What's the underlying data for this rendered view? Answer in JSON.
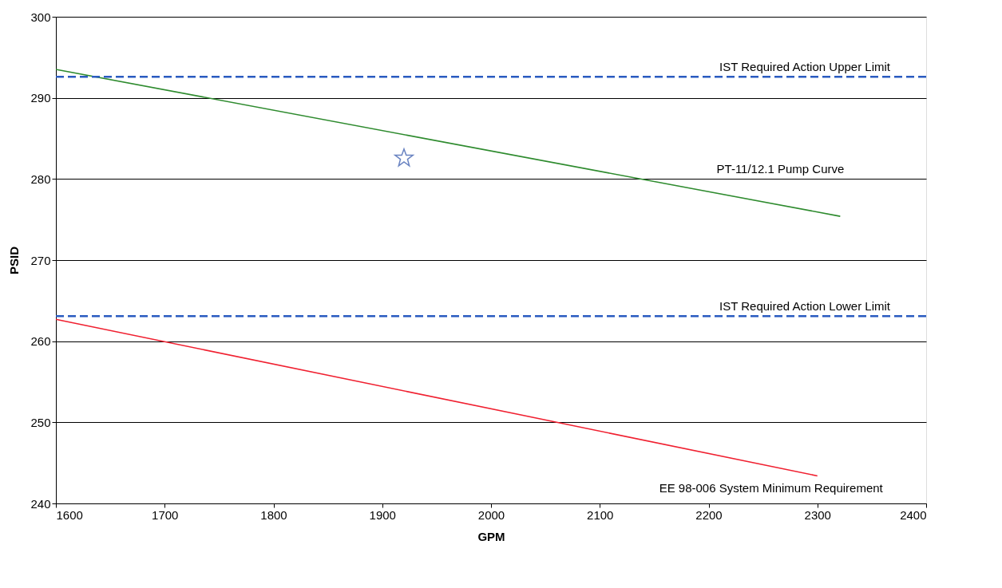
{
  "chart_data": {
    "type": "line",
    "xlabel": "GPM",
    "ylabel": "PSID",
    "xlim": [
      1600,
      2400
    ],
    "xticks": [
      1600,
      1700,
      1800,
      1900,
      2000,
      2100,
      2200,
      2300,
      2400
    ],
    "ylim": [
      240,
      300
    ],
    "yticks": [
      240,
      250,
      260,
      270,
      280,
      290,
      300
    ],
    "grid": "y",
    "series": [
      {
        "name": "PT-11/12.1 Pump Curve",
        "color": "#2e8b2e",
        "x": [
          1600,
          2321
        ],
        "values": [
          293.5,
          275.4
        ]
      },
      {
        "name": "EE 98-006 System Minimum Requirement",
        "color": "#f02030",
        "x": [
          1600,
          2300
        ],
        "values": [
          262.7,
          243.4
        ]
      },
      {
        "type": "scatter",
        "marker": "star",
        "color": "#2a4fa8",
        "x": [
          1920
        ],
        "values": [
          282.6
        ]
      }
    ],
    "ref_lines": [
      {
        "axis": "y",
        "value": 292.6,
        "label": "IST Required Action Upper Limit",
        "color": "#2a5bc0",
        "line_style": "dashed"
      },
      {
        "axis": "y",
        "value": 263.1,
        "label": "IST Required Action Lower Limit",
        "color": "#2a5bc0",
        "line_style": "dashed"
      }
    ]
  }
}
